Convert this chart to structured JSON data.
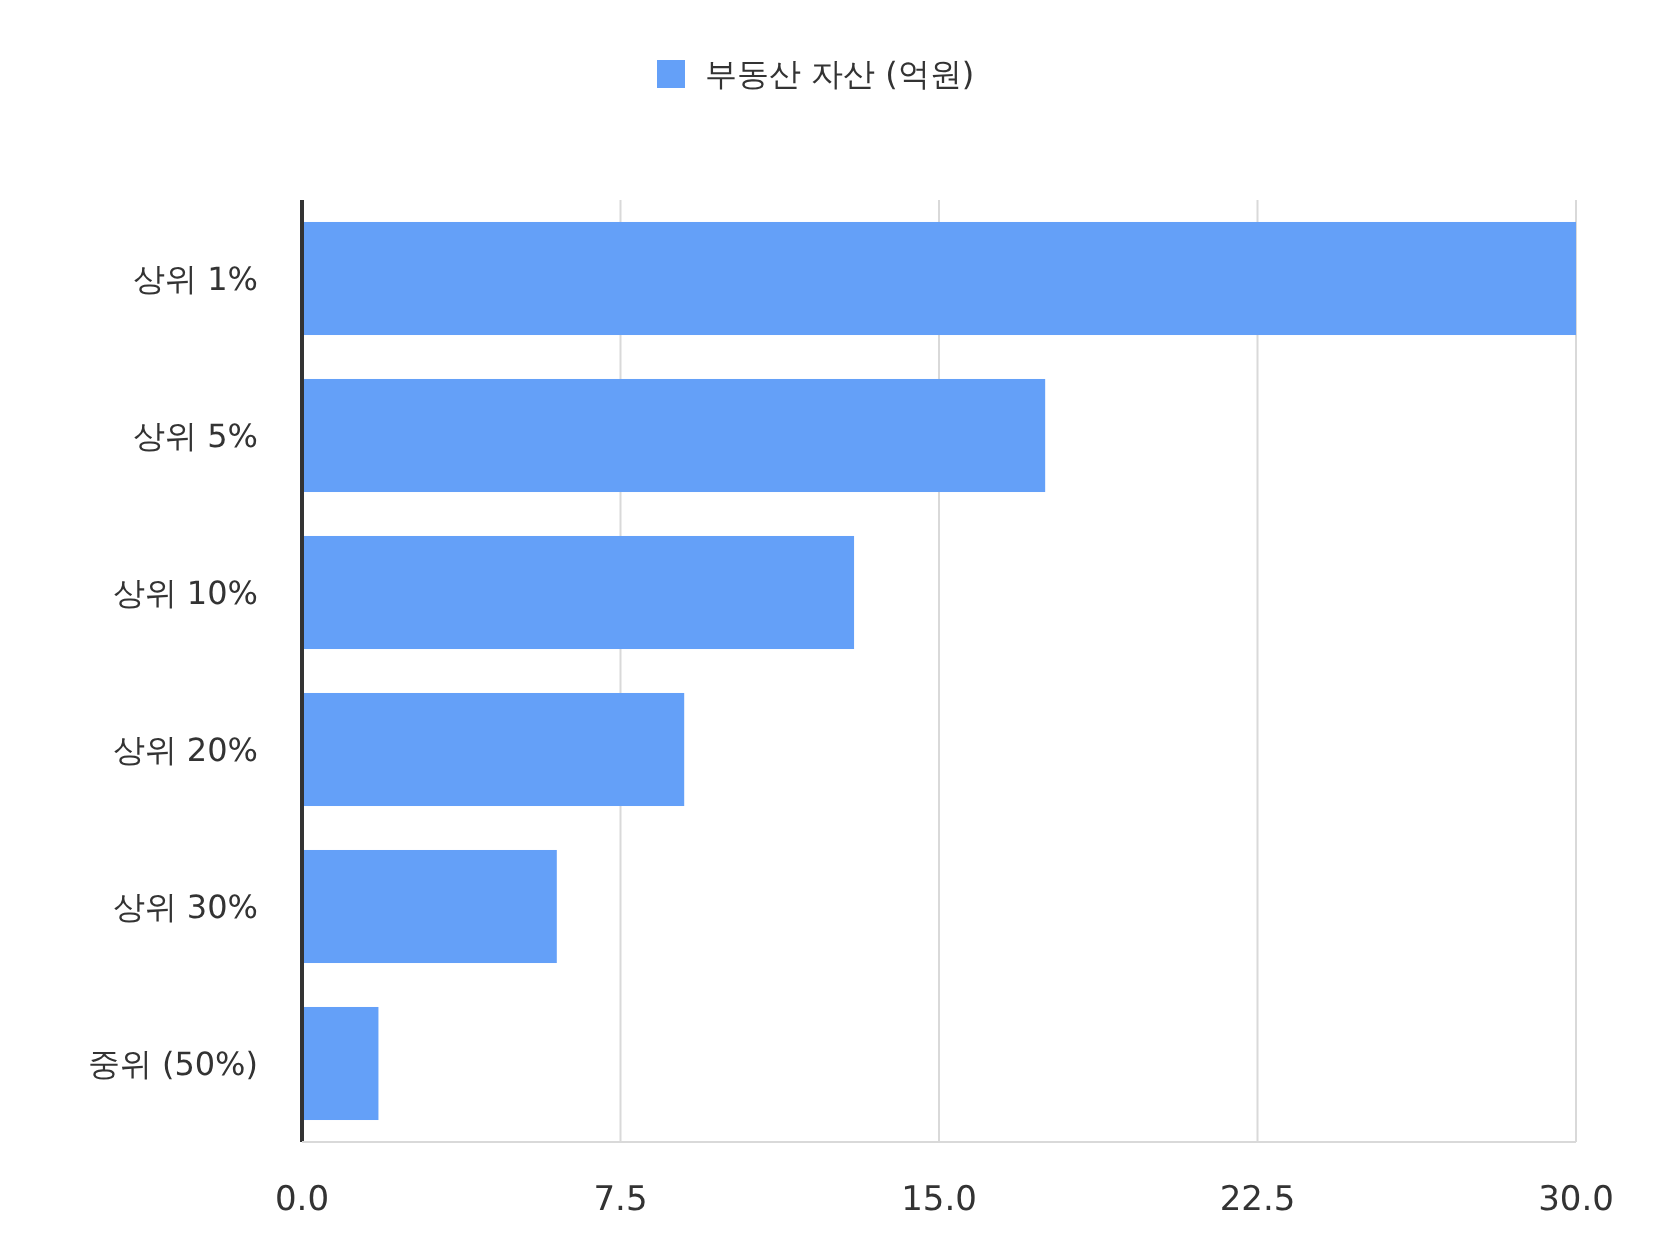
{
  "chart_data": {
    "type": "bar",
    "orientation": "horizontal",
    "categories": [
      "상위 1%",
      "상위 5%",
      "상위 10%",
      "상위 20%",
      "상위 30%",
      "중위 (50%)"
    ],
    "series": [
      {
        "name": "부동산 자산 (억원)",
        "color": "#64a0f8",
        "values": [
          30.0,
          17.5,
          13.0,
          9.0,
          6.0,
          1.8
        ]
      }
    ],
    "xlim": [
      0,
      30
    ],
    "xticks": [
      {
        "value": 0,
        "label": "0.0"
      },
      7.5,
      {
        "value": 15,
        "label": "15.0"
      },
      22.5,
      {
        "value": 30,
        "label": "30.0"
      }
    ],
    "grid": "x",
    "legend": "top"
  }
}
